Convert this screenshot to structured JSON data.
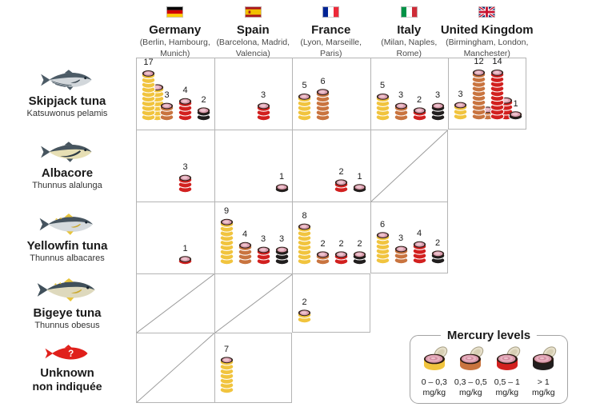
{
  "columns": [
    {
      "id": "germany",
      "label": "Germany",
      "cities": "(Berlin, Hambourg, Munich)",
      "flag_icon": "germany-flag"
    },
    {
      "id": "spain",
      "label": "Spain",
      "cities": "(Barcelona, Madrid, Valencia)",
      "flag_icon": "spain-flag"
    },
    {
      "id": "france",
      "label": "France",
      "cities": "(Lyon, Marseille, Paris)",
      "flag_icon": "france-flag"
    },
    {
      "id": "italy",
      "label": "Italy",
      "cities": "(Milan, Naples, Rome)",
      "flag_icon": "italy-flag"
    },
    {
      "id": "uk",
      "label": "United Kingdom",
      "cities": "(Birmingham, London, Manchester)",
      "flag_icon": "uk-flag"
    }
  ],
  "rows": [
    {
      "id": "skipjack",
      "label": "Skipjack tuna",
      "latin": "Katsuwonus pelamis",
      "fish_icon": "skipjack-fish"
    },
    {
      "id": "albacore",
      "label": "Albacore",
      "latin": "Thunnus alalunga",
      "fish_icon": "albacore-fish"
    },
    {
      "id": "yellowfin",
      "label": "Yellowfin tuna",
      "latin": "Thunnus albacares",
      "fish_icon": "yellowfin-fish"
    },
    {
      "id": "bigeye",
      "label": "Bigeye tuna",
      "latin": "Thunnus obesus",
      "fish_icon": "bigeye-fish"
    },
    {
      "id": "unknown",
      "label": "Unknown",
      "latin": "non indiquée",
      "fish_icon": "unknown-fish"
    }
  ],
  "legend": {
    "title": "Mercury levels"
  },
  "chart_data": {
    "type": "pictogram-matrix",
    "mercury_levels": [
      {
        "id": "yellow",
        "range": "0 – 0,3",
        "unit": "mg/kg",
        "color": "#F1C43E"
      },
      {
        "id": "orange",
        "range": "0,3 – 0,5",
        "unit": "mg/kg",
        "color": "#C9743F"
      },
      {
        "id": "red",
        "range": "0,5 – 1",
        "unit": "mg/kg",
        "color": "#D2201F"
      },
      {
        "id": "black",
        "range": "> 1",
        "unit": "mg/kg",
        "color": "#211E1E"
      }
    ],
    "categories": [
      "Germany",
      "Spain",
      "France",
      "Italy",
      "United Kingdom"
    ],
    "series_rows": [
      "Skipjack tuna",
      "Albacore",
      "Yellowfin tuna",
      "Bigeye tuna",
      "Unknown"
    ],
    "cells": {
      "skipjack": {
        "germany": {
          "yellow": 17,
          "orange": 3,
          "red": 4,
          "black": 2
        },
        "spain": {
          "red": 3
        },
        "france": {
          "yellow": 5,
          "orange": 6
        },
        "italy": {
          "yellow": 5,
          "orange": 3,
          "red": 2,
          "black": 3
        },
        "uk": {
          "yellow": 3,
          "orange": 12,
          "red": 14,
          "black": 1
        }
      },
      "albacore": {
        "germany": {
          "red": 3
        },
        "spain": {
          "black": 1
        },
        "france": {
          "red": 2,
          "black": 1
        }
      },
      "yellowfin": {
        "germany": {
          "red": 1
        },
        "spain": {
          "yellow": 9,
          "orange": 4,
          "red": 3,
          "black": 3
        },
        "france": {
          "yellow": 8,
          "orange": 2,
          "red": 2,
          "black": 2
        },
        "italy": {
          "yellow": 6,
          "orange": 3,
          "red": 4,
          "black": 2
        }
      },
      "bigeye": {
        "france": {
          "yellow": 2
        }
      },
      "unknown": {
        "spain": {
          "yellow": 7
        }
      }
    },
    "no_data_cells": [
      "albacore.italy",
      "bigeye.germany",
      "bigeye.spain",
      "unknown.germany"
    ]
  }
}
